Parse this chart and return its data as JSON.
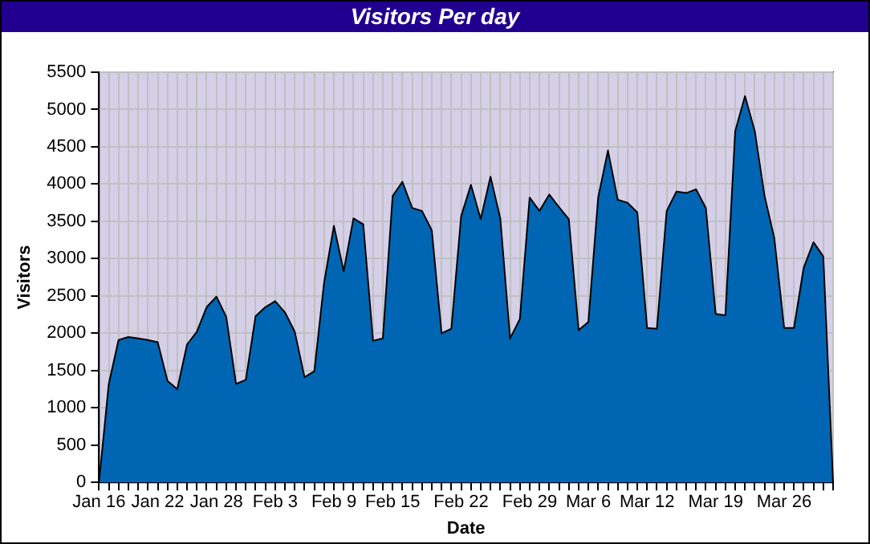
{
  "chart_data": {
    "type": "area",
    "title": "Visitors Per day",
    "xlabel": "Date",
    "ylabel": "Visitors",
    "categories": [
      "Jan 16",
      null,
      null,
      null,
      null,
      null,
      "Jan 22",
      null,
      null,
      null,
      null,
      null,
      "Jan 28",
      null,
      null,
      null,
      null,
      null,
      "Feb 3",
      null,
      null,
      null,
      null,
      null,
      "Feb 9",
      null,
      null,
      null,
      null,
      null,
      "Feb 15",
      null,
      null,
      null,
      null,
      null,
      null,
      "Feb 22",
      null,
      null,
      null,
      null,
      null,
      null,
      "Feb 29",
      null,
      null,
      null,
      null,
      null,
      "Mar 6",
      null,
      null,
      null,
      null,
      null,
      "Mar 12",
      null,
      null,
      null,
      null,
      null,
      null,
      "Mar 19",
      null,
      null,
      null,
      null,
      null,
      null,
      "Mar 26",
      null,
      null,
      null,
      null,
      null
    ],
    "series": [
      {
        "color": "#0066b3",
        "values": [
          0,
          1320,
          1910,
          1950,
          1930,
          1910,
          1880,
          1360,
          1250,
          1850,
          2020,
          2350,
          2490,
          2220,
          1320,
          1375,
          2230,
          2350,
          2430,
          2280,
          2020,
          1410,
          1490,
          2680,
          3440,
          2830,
          3540,
          3460,
          1900,
          1930,
          3840,
          4030,
          3680,
          3640,
          3380,
          2000,
          2060,
          3570,
          3990,
          3530,
          4100,
          3540,
          1930,
          2190,
          3820,
          3640,
          3860,
          3690,
          3530,
          2040,
          2150,
          3820,
          4450,
          3790,
          3750,
          3620,
          2070,
          2060,
          3640,
          3900,
          3880,
          3930,
          3680,
          2260,
          2240,
          4710,
          5180,
          4710,
          3840,
          3270,
          2070,
          2070,
          2880,
          3220,
          3030,
          0
        ]
      }
    ],
    "ylim": [
      0,
      5500
    ],
    "yticks": [
      0,
      500,
      1000,
      1500,
      2000,
      2500,
      3000,
      3500,
      4000,
      4500,
      5000,
      5500
    ],
    "grid": true,
    "legend": false
  }
}
